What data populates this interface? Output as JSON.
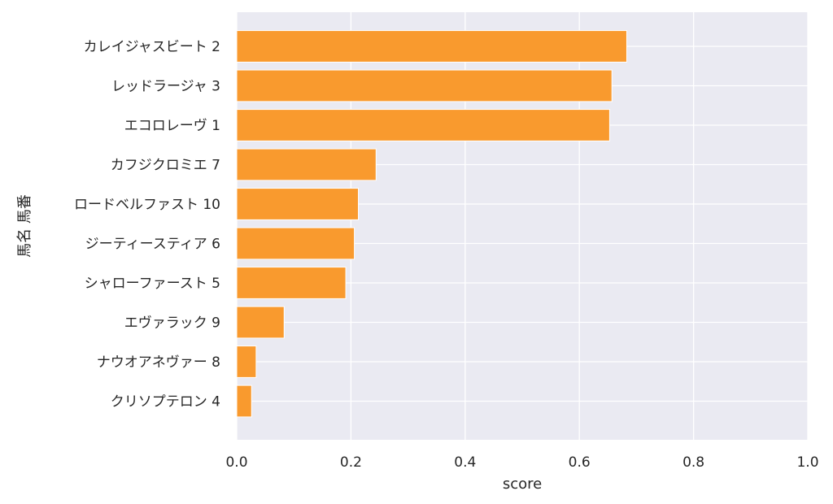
{
  "chart_data": {
    "type": "bar",
    "orientation": "horizontal",
    "categories": [
      "カレイジャスビート 2",
      "レッドラージャ 3",
      "エコロレーヴ 1",
      "カフジクロミエ 7",
      "ロードベルファスト 10",
      "ジーティースティア 6",
      "シャローファースト 5",
      "エヴァラック 9",
      "ナウオアネヴァー 8",
      "クリソプテロン 4"
    ],
    "values": [
      0.683,
      0.657,
      0.653,
      0.244,
      0.213,
      0.206,
      0.191,
      0.083,
      0.034,
      0.026
    ],
    "xlabel": "score",
    "ylabel": "馬名 馬番",
    "xlim": [
      0,
      1.0
    ],
    "xticks": [
      "0.0",
      "0.2",
      "0.4",
      "0.6",
      "0.8",
      "1.0"
    ],
    "grid": true,
    "colors": {
      "bar": "#f99a2e",
      "bar_edge": "#ffffff",
      "plot_background": "#eaeaf2",
      "grid": "#ffffff"
    }
  }
}
